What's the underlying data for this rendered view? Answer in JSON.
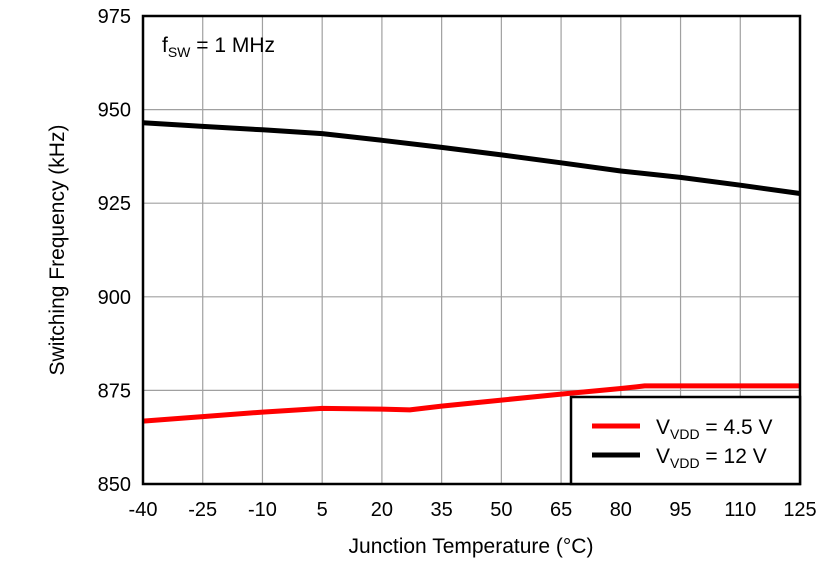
{
  "chart_data": {
    "type": "line",
    "title": "",
    "annotation": {
      "main": "f",
      "sub": "SW",
      "rest": " = 1 MHz"
    },
    "xlabel": "Junction Temperature (°C)",
    "ylabel": "Switching Frequency (kHz)",
    "xlim": [
      -40,
      125
    ],
    "ylim": [
      850,
      975
    ],
    "xticks": [
      -40,
      -25,
      -10,
      5,
      20,
      35,
      50,
      65,
      80,
      95,
      110,
      125
    ],
    "yticks": [
      850,
      875,
      900,
      925,
      950,
      975
    ],
    "grid": true,
    "legend_position": "bottom-right",
    "series": [
      {
        "name": "VVDD = 4.5 V",
        "label_main": "V",
        "label_sub": "VDD",
        "label_rest": " = 4.5 V",
        "color": "#ff0000",
        "x": [
          -40,
          -25,
          -10,
          5,
          20,
          27,
          35,
          50,
          65,
          80,
          86,
          95,
          110,
          125
        ],
        "y": [
          866.8,
          868,
          869.2,
          870.2,
          870,
          869.8,
          870.8,
          872.4,
          874,
          875.5,
          876.2,
          876.2,
          876.2,
          876.2
        ]
      },
      {
        "name": "VVDD = 12 V",
        "label_main": "V",
        "label_sub": "VDD",
        "label_rest": " = 12 V",
        "color": "#000000",
        "x": [
          -40,
          -25,
          -10,
          5,
          20,
          35,
          50,
          65,
          80,
          95,
          110,
          125
        ],
        "y": [
          946.5,
          945.5,
          944.6,
          943.6,
          941.8,
          939.9,
          937.9,
          935.8,
          933.6,
          931.9,
          929.8,
          927.6
        ]
      }
    ]
  }
}
